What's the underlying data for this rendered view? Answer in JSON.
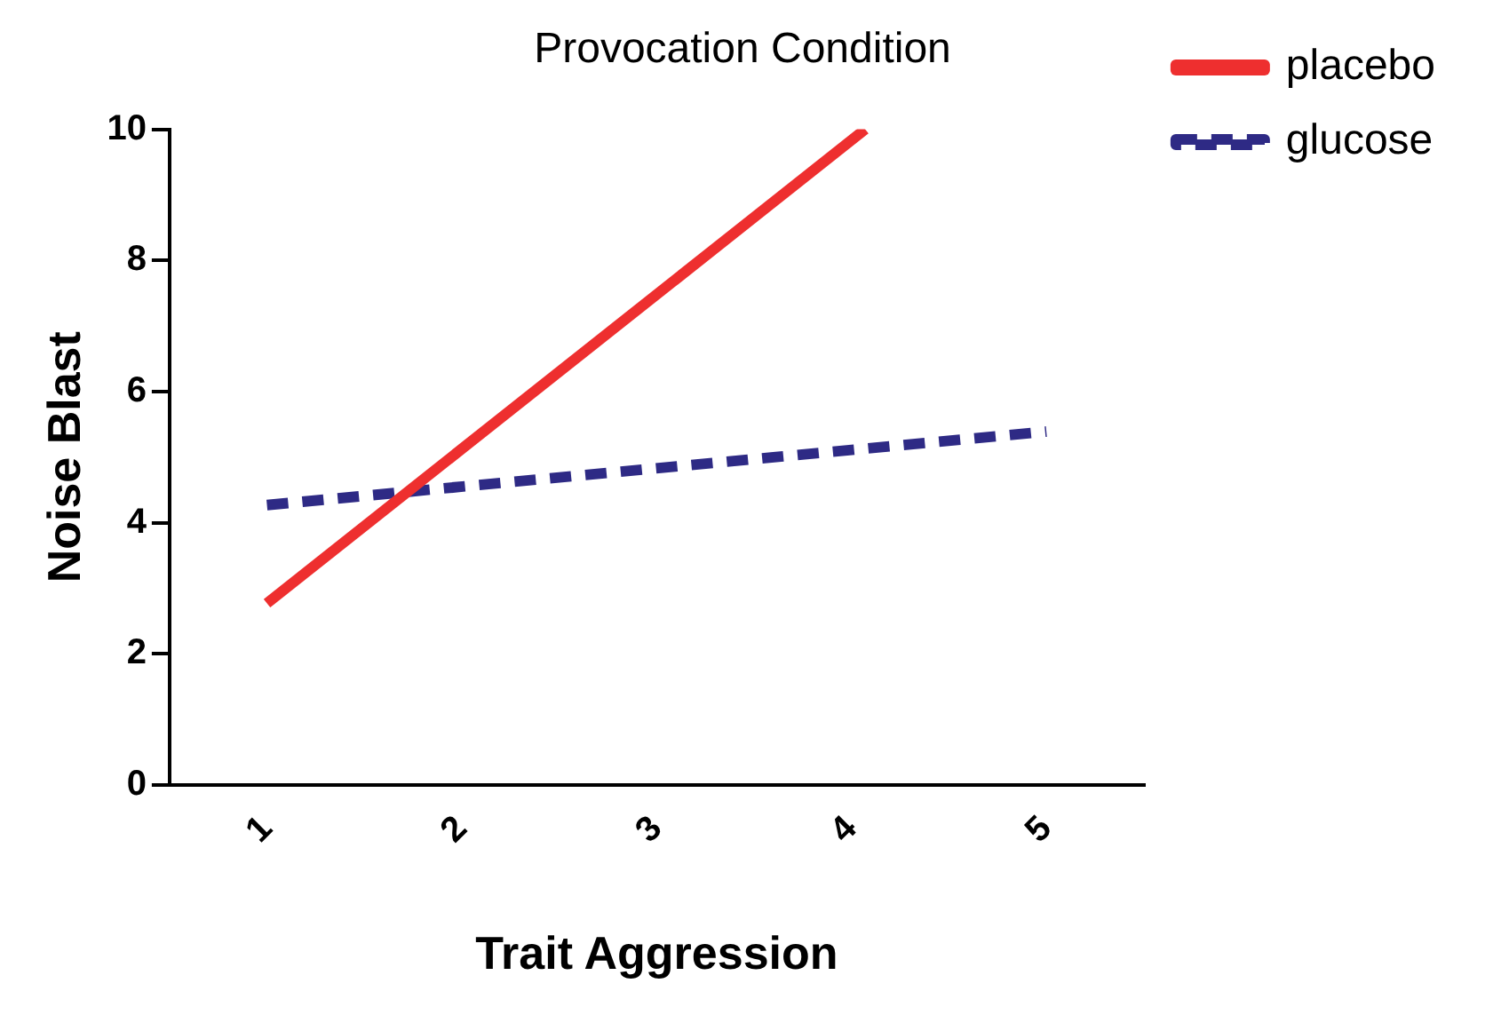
{
  "chart_data": {
    "type": "line",
    "title": "Provocation Condition",
    "xlabel": "Trait Aggression",
    "ylabel": "Noise Blast",
    "xlim": [
      0.5,
      5.5
    ],
    "xticks": [
      1,
      2,
      3,
      4,
      5
    ],
    "ylim": [
      0,
      10
    ],
    "yticks": [
      0,
      2,
      4,
      6,
      8,
      10
    ],
    "grid": false,
    "legend": "top right",
    "marker": "none",
    "series": [
      {
        "name": "placebo",
        "color": "#ee2f2f",
        "line_style": "solid",
        "x": [
          1,
          4.07
        ],
        "values": [
          2.77,
          10
        ]
      },
      {
        "name": "glucose",
        "color": "#2e2a85",
        "line_style": "dashed",
        "x": [
          1,
          5
        ],
        "values": [
          4.27,
          5.39
        ]
      }
    ]
  }
}
